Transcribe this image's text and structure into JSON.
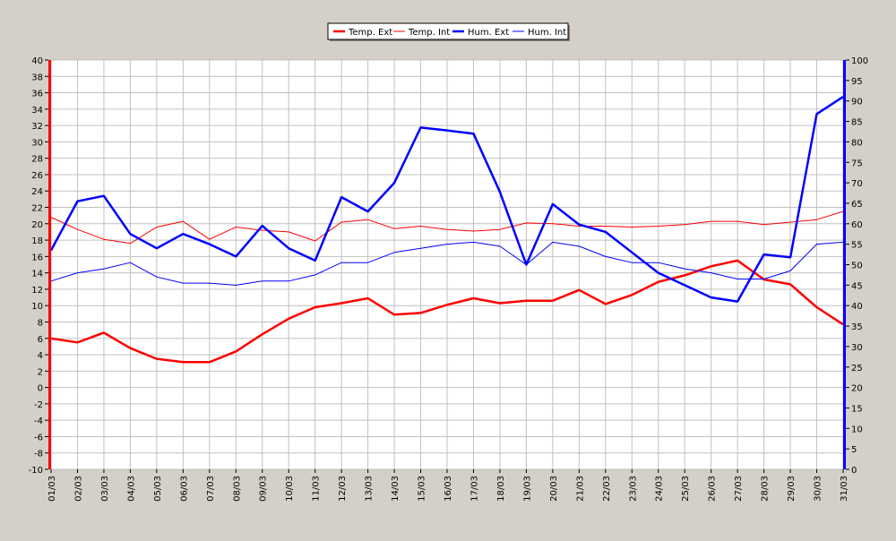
{
  "chart_data": {
    "type": "line",
    "categories": [
      "01/03",
      "02/03",
      "03/03",
      "04/03",
      "05/03",
      "06/03",
      "07/03",
      "08/03",
      "09/03",
      "10/03",
      "11/03",
      "12/03",
      "13/03",
      "14/03",
      "15/03",
      "16/03",
      "17/03",
      "18/03",
      "19/03",
      "20/03",
      "21/03",
      "22/03",
      "23/03",
      "24/03",
      "25/03",
      "26/03",
      "27/03",
      "28/03",
      "29/03",
      "30/03",
      "31/03"
    ],
    "left_axis": {
      "ylim": [
        -10,
        40
      ],
      "ticks": [
        -10,
        -8,
        -6,
        -4,
        -2,
        0,
        2,
        4,
        6,
        8,
        10,
        12,
        14,
        16,
        18,
        20,
        22,
        24,
        26,
        28,
        30,
        32,
        34,
        36,
        38,
        40
      ],
      "color": "#ff0000"
    },
    "right_axis": {
      "ylim": [
        0,
        100
      ],
      "ticks": [
        0,
        5,
        10,
        15,
        20,
        25,
        30,
        35,
        40,
        45,
        50,
        55,
        60,
        65,
        70,
        75,
        80,
        85,
        90,
        95,
        100
      ],
      "color": "#0000ff"
    },
    "series": [
      {
        "name": "Temp. Ext",
        "axis": "left",
        "color": "#ff0000",
        "width": "thick",
        "values": [
          6.0,
          5.5,
          6.7,
          4.8,
          3.5,
          3.1,
          3.1,
          4.4,
          6.5,
          8.4,
          9.8,
          10.3,
          10.9,
          8.9,
          9.1,
          10.1,
          10.9,
          10.3,
          10.6,
          10.6,
          11.9,
          10.2,
          11.3,
          12.9,
          13.7,
          14.8,
          15.5,
          13.2,
          12.6,
          9.8,
          7.7
        ]
      },
      {
        "name": "Temp. Int",
        "axis": "left",
        "color": "#ff0000",
        "width": "thin",
        "values": [
          20.8,
          19.3,
          18.1,
          17.6,
          19.6,
          20.3,
          18.1,
          19.6,
          19.2,
          19.0,
          17.9,
          20.2,
          20.5,
          19.4,
          19.7,
          19.3,
          19.1,
          19.3,
          20.1,
          20.0,
          19.7,
          19.7,
          19.6,
          19.7,
          19.9,
          20.3,
          20.3,
          19.9,
          20.2,
          20.5,
          21.5
        ]
      },
      {
        "name": "Hum. Ext",
        "axis": "right",
        "color": "#0000ff",
        "width": "thick",
        "values": [
          53.5,
          65.5,
          66.8,
          57.5,
          54.0,
          57.5,
          55.0,
          52.0,
          59.5,
          54.0,
          51.0,
          66.5,
          63.0,
          70.0,
          83.5,
          82.8,
          82.0,
          67.8,
          50.0,
          64.8,
          59.8,
          58.0,
          53.0,
          48.0,
          45.0,
          42.0,
          41.0,
          52.5,
          51.8,
          86.8,
          91.0
        ]
      },
      {
        "name": "Hum. Int",
        "axis": "right",
        "color": "#0000ff",
        "width": "thin",
        "values": [
          46.0,
          48.0,
          49.0,
          50.5,
          47.0,
          45.5,
          45.5,
          45.0,
          46.0,
          46.0,
          47.5,
          50.5,
          50.5,
          53.0,
          54.0,
          55.0,
          55.5,
          54.5,
          50.0,
          55.5,
          54.5,
          52.0,
          50.5,
          50.5,
          49.0,
          48.0,
          46.5,
          46.5,
          48.5,
          55.0,
          55.5
        ]
      }
    ],
    "grid": true,
    "legend_position": "top-center"
  }
}
